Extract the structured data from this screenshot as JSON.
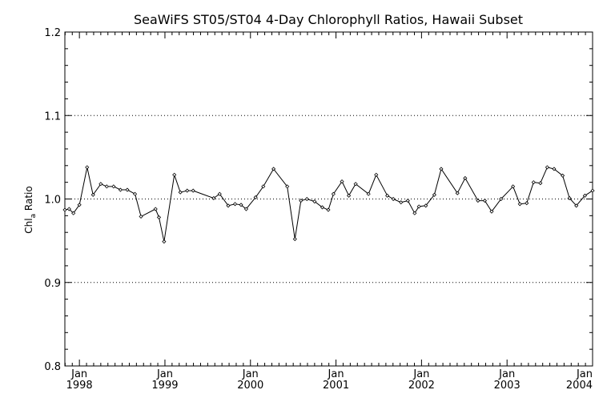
{
  "chart_data": {
    "type": "line",
    "title": "SeaWiFS ST05/ST04 4-Day Chlorophyll Ratios, Hawaii Subset",
    "ylabel": {
      "main": "Chl",
      "sub": "a",
      "rest": " Ratio"
    },
    "ylim": [
      0.8,
      1.2
    ],
    "yticks": [
      "0.8",
      "0.9",
      "1.0",
      "1.1",
      "1.2"
    ],
    "xlim": [
      1997.83,
      2004.0
    ],
    "xticks": [
      {
        "x": 1998,
        "month": "Jan",
        "year": "1998"
      },
      {
        "x": 1999,
        "month": "Jan",
        "year": "1999"
      },
      {
        "x": 2000,
        "month": "Jan",
        "year": "2000"
      },
      {
        "x": 2001,
        "month": "Jan",
        "year": "2001"
      },
      {
        "x": 2002,
        "month": "Jan",
        "year": "2002"
      },
      {
        "x": 2003,
        "month": "Jan",
        "year": "2003"
      },
      {
        "x": 2004,
        "month": "Jan",
        "year": "2004"
      }
    ],
    "grid": {
      "y_dotted": [
        0.9,
        1.0,
        1.1
      ]
    },
    "series": [
      {
        "x": [
          1997.83,
          1997.88,
          1997.93,
          1998.0,
          1998.09,
          1998.16,
          1998.25,
          1998.32,
          1998.4,
          1998.48,
          1998.56,
          1998.65,
          1998.72,
          1998.89,
          1998.93,
          1998.99,
          1999.11,
          1999.18,
          1999.26,
          1999.33,
          1999.57,
          1999.64,
          1999.74,
          1999.82,
          1999.89,
          1999.95,
          2000.06,
          2000.15,
          2000.27,
          2000.43,
          2000.52,
          2000.59,
          2000.66,
          2000.75,
          2000.84,
          2000.91,
          2000.97,
          2001.07,
          2001.15,
          2001.23,
          2001.38,
          2001.47,
          2001.6,
          2001.67,
          2001.76,
          2001.84,
          2001.92,
          2001.97,
          2002.05,
          2002.15,
          2002.23,
          2002.42,
          2002.51,
          2002.66,
          2002.74,
          2002.82,
          2002.93,
          2003.07,
          2003.15,
          2003.23,
          2003.31,
          2003.39,
          2003.47,
          2003.55,
          2003.65,
          2003.73,
          2003.81,
          2003.91,
          2004.0
        ],
        "y": [
          0.987,
          0.988,
          0.983,
          0.993,
          1.038,
          1.005,
          1.018,
          1.015,
          1.015,
          1.011,
          1.011,
          1.006,
          0.979,
          0.988,
          0.978,
          0.949,
          1.029,
          1.008,
          1.01,
          1.01,
          1.001,
          1.006,
          0.992,
          0.994,
          0.993,
          0.988,
          1.002,
          1.015,
          1.036,
          1.015,
          0.952,
          0.998,
          1.0,
          0.997,
          0.99,
          0.987,
          1.006,
          1.021,
          1.004,
          1.018,
          1.006,
          1.029,
          1.004,
          1.0,
          0.996,
          0.998,
          0.983,
          0.991,
          0.992,
          1.005,
          1.036,
          1.007,
          1.025,
          0.998,
          0.998,
          0.985,
          1.0,
          1.015,
          0.994,
          0.995,
          1.02,
          1.019,
          1.038,
          1.036,
          1.028,
          1.001,
          0.992,
          1.004,
          1.01
        ]
      }
    ]
  }
}
